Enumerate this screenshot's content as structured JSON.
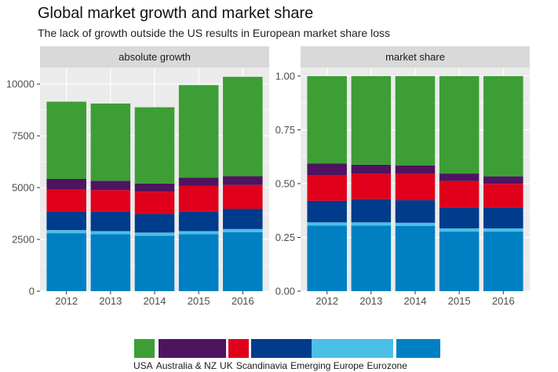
{
  "title": "Global market growth and market share",
  "subtitle": "The lack of growth outside the US results in European market share loss",
  "colors": {
    "USA": "#3d9e35",
    "Australia & NZ": "#4e1460",
    "UK": "#e0001b",
    "Scandinavia": "#003b8c",
    "Emerging Europe": "#4cbfe8",
    "Eurozone": "#0080c2",
    "panel_bg": "#ebebeb",
    "strip_bg": "#d9d9d9",
    "grid": "#ffffff"
  },
  "chart_data": [
    {
      "type": "bar",
      "stacked": true,
      "facet": "absolute growth",
      "categories": [
        "2012",
        "2013",
        "2014",
        "2015",
        "2016"
      ],
      "ylim": [
        0,
        10800
      ],
      "yticks": [
        0,
        2500,
        5000,
        7500,
        10000
      ],
      "ytick_labels": [
        "0",
        "2500",
        "5000",
        "7500",
        "10000"
      ],
      "series": [
        {
          "name": "Eurozone",
          "values": [
            2800,
            2750,
            2680,
            2750,
            2850
          ]
        },
        {
          "name": "Emerging Europe",
          "values": [
            150,
            150,
            150,
            150,
            150
          ]
        },
        {
          "name": "Scandinavia",
          "values": [
            900,
            930,
            900,
            930,
            980
          ]
        },
        {
          "name": "UK",
          "values": [
            1050,
            1050,
            1070,
            1250,
            1150
          ]
        },
        {
          "name": "Australia & NZ",
          "values": [
            520,
            450,
            400,
            400,
            420
          ]
        },
        {
          "name": "USA",
          "values": [
            3730,
            3730,
            3680,
            4470,
            4800
          ]
        }
      ]
    },
    {
      "type": "bar",
      "stacked": true,
      "facet": "market share",
      "categories": [
        "2012",
        "2013",
        "2014",
        "2015",
        "2016"
      ],
      "ylim": [
        0,
        1.04
      ],
      "yticks": [
        0,
        0.25,
        0.5,
        0.75,
        1.0
      ],
      "ytick_labels": [
        "0.00",
        "0.25",
        "0.50",
        "0.75",
        "1.00"
      ],
      "series": [
        {
          "name": "Eurozone",
          "values": [
            0.305,
            0.305,
            0.303,
            0.277,
            0.277
          ]
        },
        {
          "name": "Emerging Europe",
          "values": [
            0.015,
            0.015,
            0.015,
            0.015,
            0.015
          ]
        },
        {
          "name": "Scandinavia",
          "values": [
            0.1,
            0.108,
            0.105,
            0.095,
            0.095
          ]
        },
        {
          "name": "UK",
          "values": [
            0.12,
            0.118,
            0.122,
            0.125,
            0.112
          ]
        },
        {
          "name": "Australia & NZ",
          "values": [
            0.053,
            0.042,
            0.04,
            0.035,
            0.035
          ]
        },
        {
          "name": "USA",
          "values": [
            0.407,
            0.412,
            0.415,
            0.453,
            0.466
          ]
        }
      ]
    }
  ],
  "legend": {
    "position": "bottom",
    "items": [
      "USA",
      "Australia & NZ",
      "UK",
      "Scandinavia",
      "Emerging Europe",
      "Eurozone"
    ]
  }
}
